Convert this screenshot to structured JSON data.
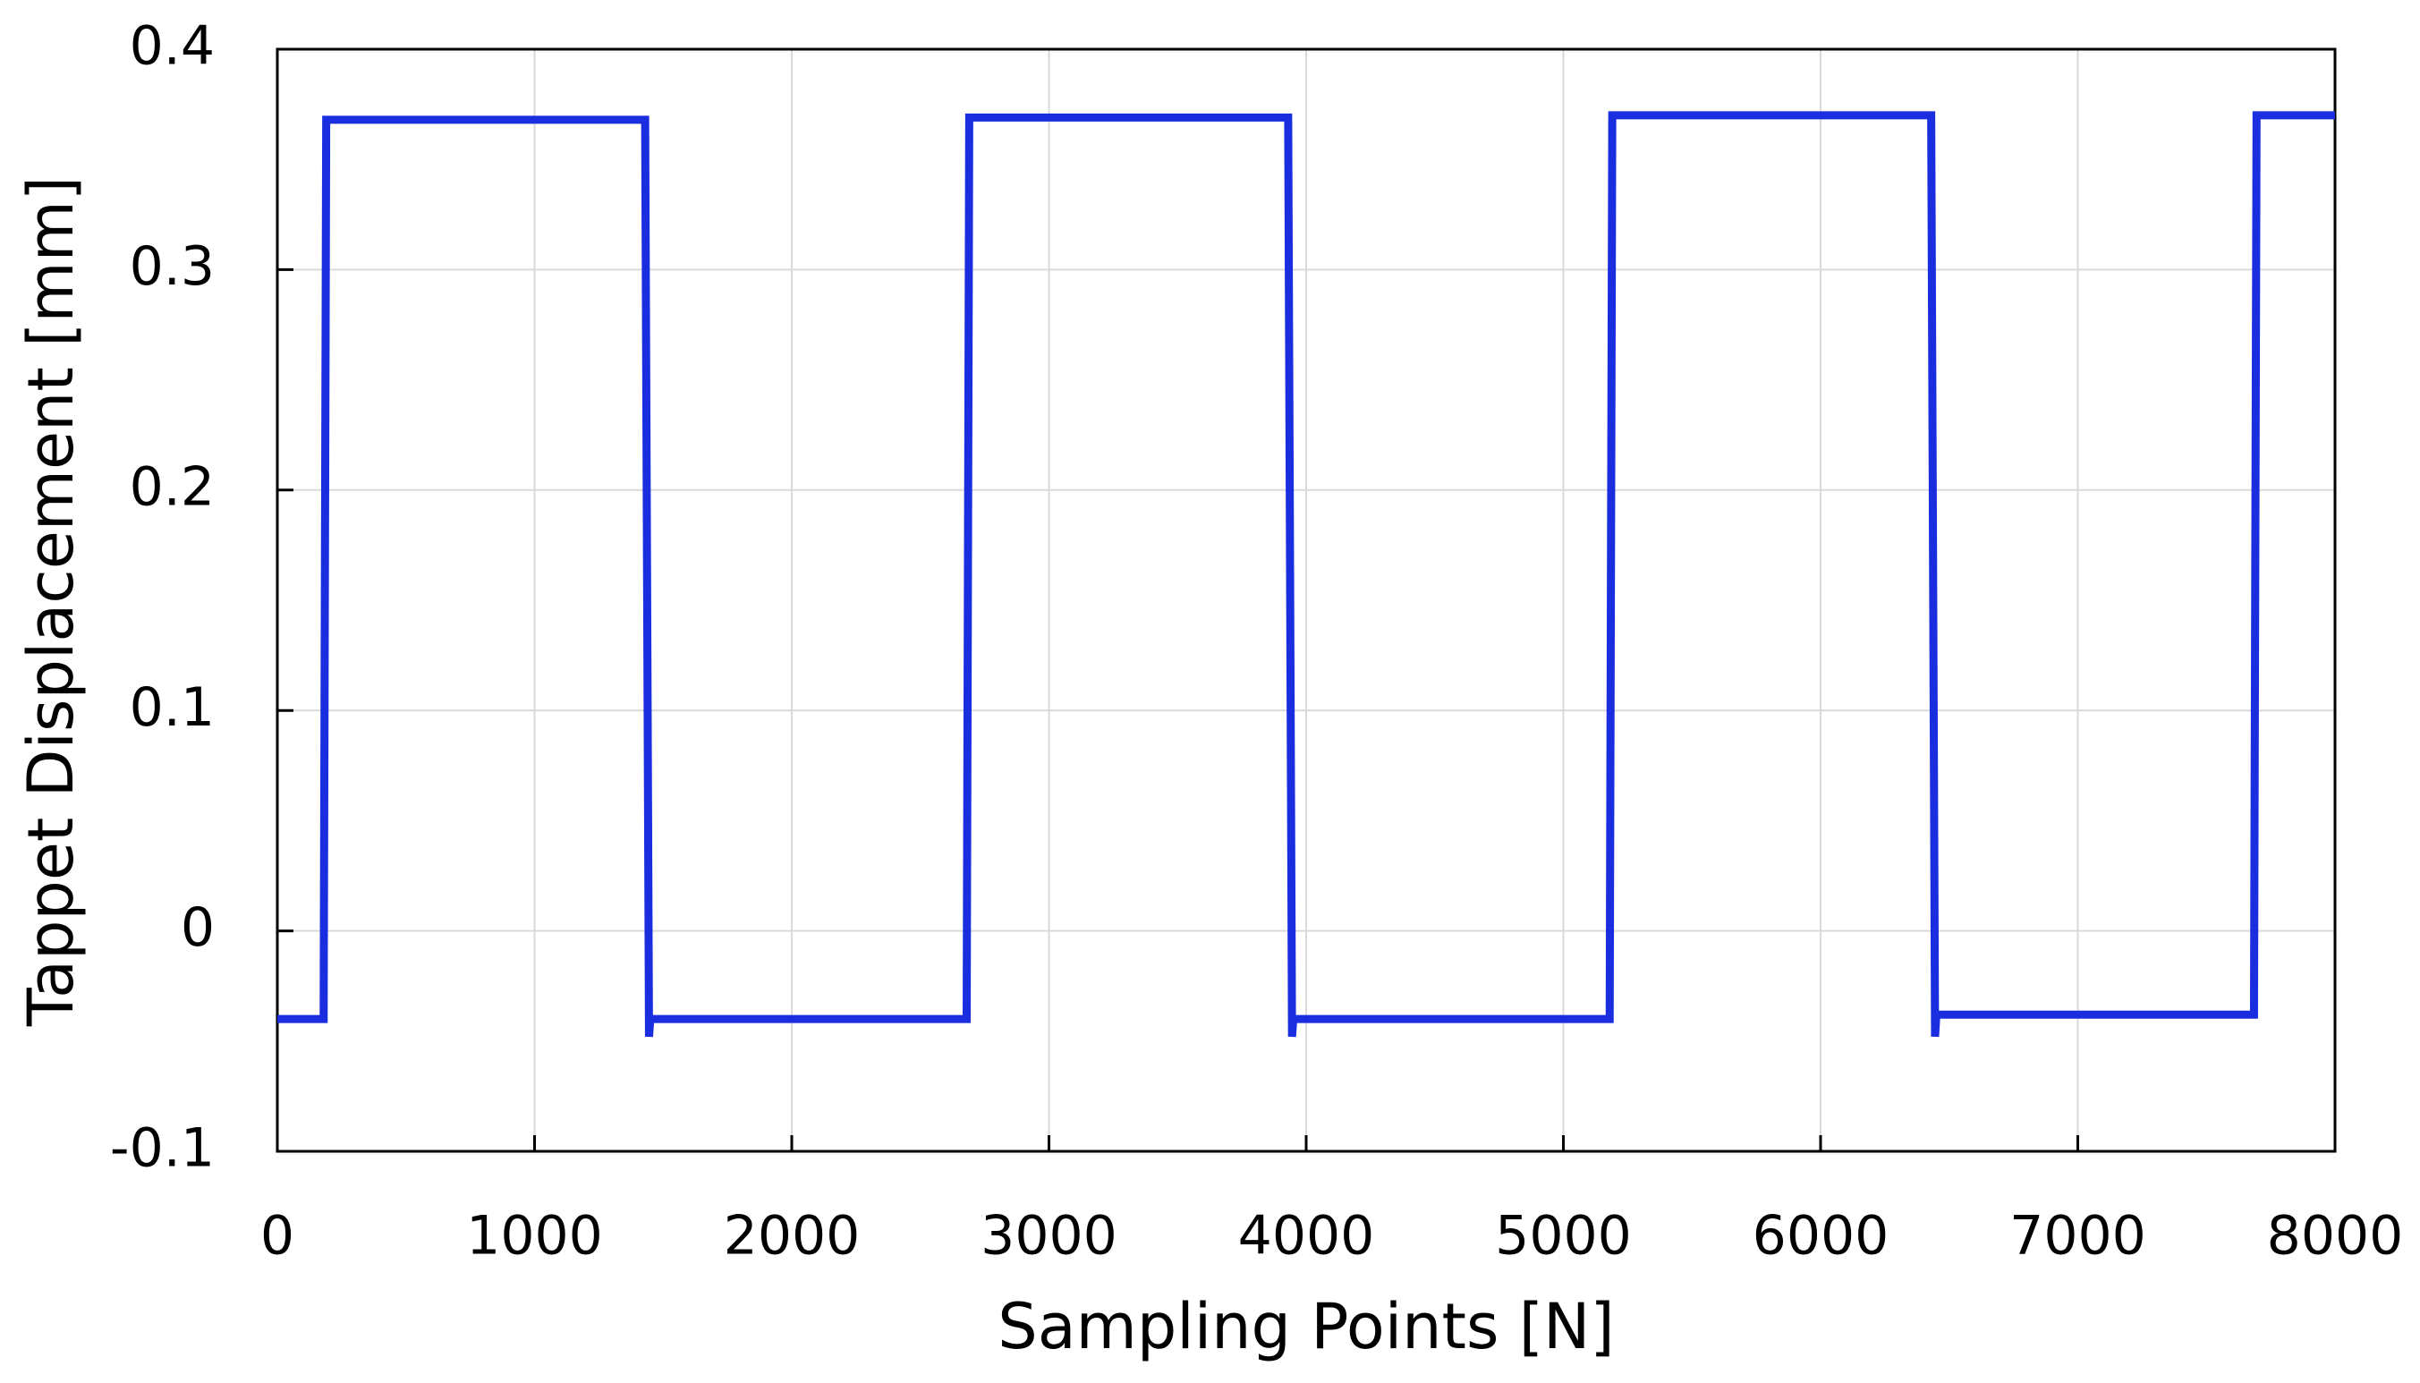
{
  "chart_data": {
    "type": "line",
    "x_label": "Sampling Points [N]",
    "y_label": "Tappet Displacement [mm]",
    "xlim": [
      0,
      8000
    ],
    "ylim": [
      -0.1,
      0.4
    ],
    "xticks": [
      0,
      1000,
      2000,
      3000,
      4000,
      5000,
      6000,
      7000,
      8000
    ],
    "yticks": [
      -0.1,
      0,
      0.1,
      0.2,
      0.3,
      0.4
    ],
    "grid": true,
    "color": "#1a2ee0",
    "x": [
      0,
      180,
      190,
      1430,
      1445,
      1450,
      2680,
      2690,
      3930,
      3945,
      3950,
      5180,
      5190,
      6430,
      6445,
      6450,
      7685,
      7695,
      8000
    ],
    "values": [
      -0.04,
      -0.04,
      0.368,
      0.368,
      -0.048,
      -0.04,
      -0.04,
      0.369,
      0.369,
      -0.048,
      -0.04,
      -0.04,
      0.37,
      0.37,
      -0.048,
      -0.038,
      -0.038,
      0.37,
      0.37
    ]
  }
}
